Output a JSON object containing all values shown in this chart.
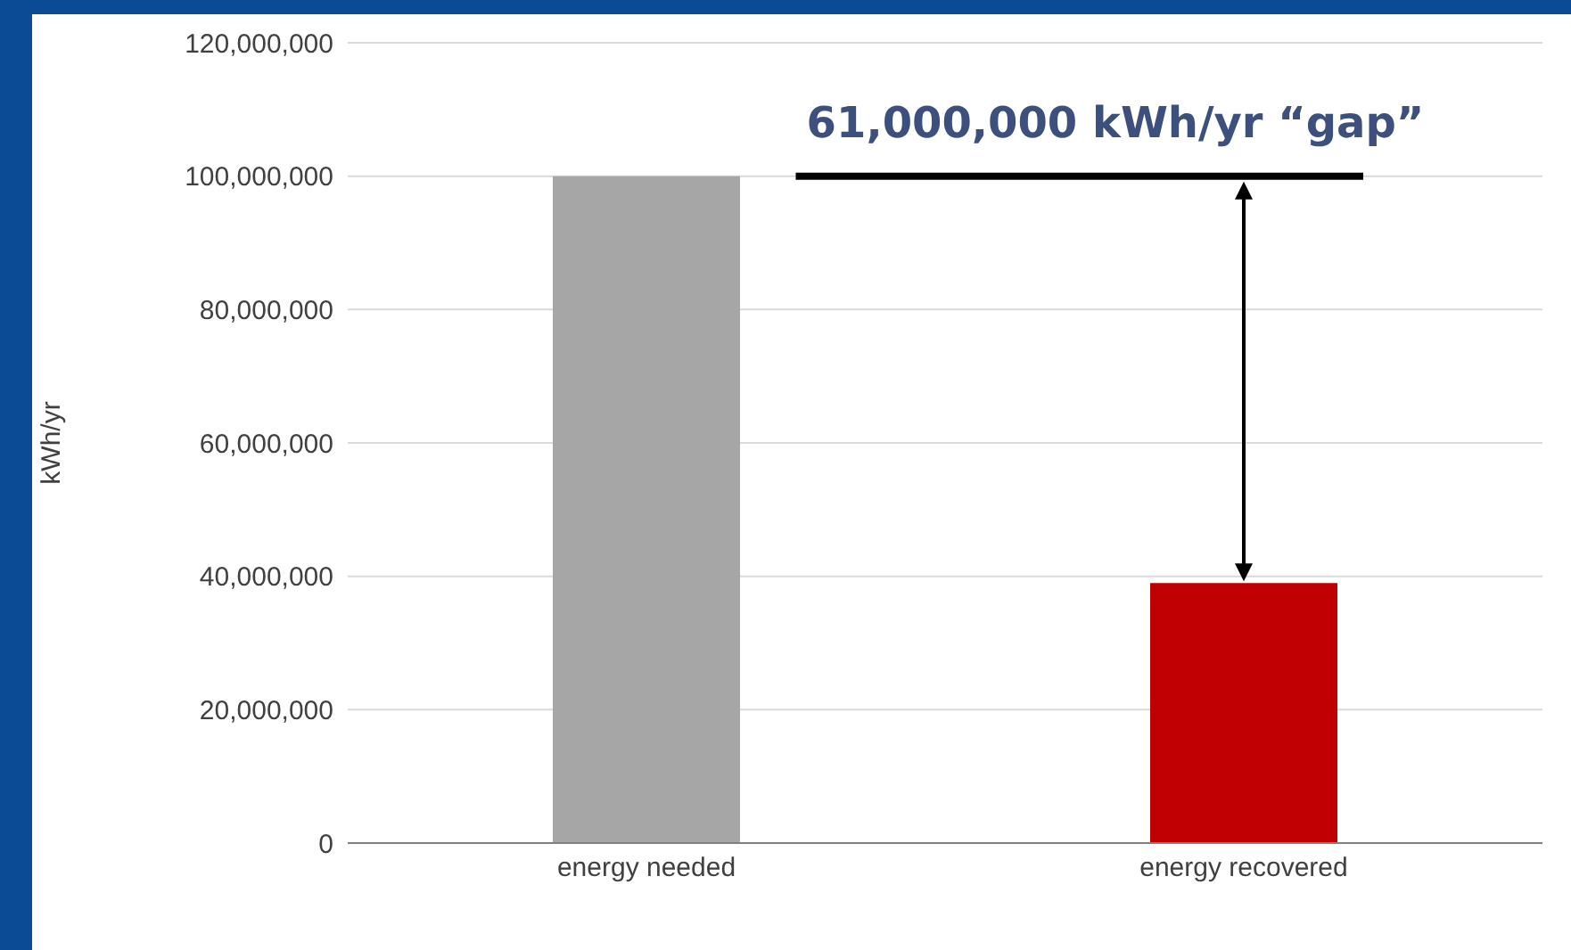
{
  "chart_data": {
    "type": "bar",
    "ylabel": "kWh/yr",
    "categories": [
      "energy needed",
      "energy recovered"
    ],
    "values": [
      100000000,
      39000000
    ],
    "colors": [
      "#a6a6a6",
      "#c00000"
    ],
    "ylim": [
      0,
      120000000
    ],
    "yticks": [
      0,
      {
        "value": 20000000,
        "label": "20,000,000"
      },
      {
        "value": 40000000,
        "label": "40,000,000"
      },
      {
        "value": 60000000,
        "label": "60,000,000"
      },
      {
        "value": 80000000,
        "label": "80,000,000"
      },
      {
        "value": 100000000,
        "label": "100,000,000"
      },
      {
        "value": 120000000,
        "label": "120,000,000"
      }
    ],
    "grid": "y",
    "legend": false,
    "ref_lines": [
      {
        "axis": "y",
        "value": 100000000,
        "color": "#000000"
      }
    ],
    "annotations": [
      {
        "text": "61,000,000 kWh/yr “gap”",
        "x": "energy recovered",
        "y": 100000000
      }
    ]
  }
}
